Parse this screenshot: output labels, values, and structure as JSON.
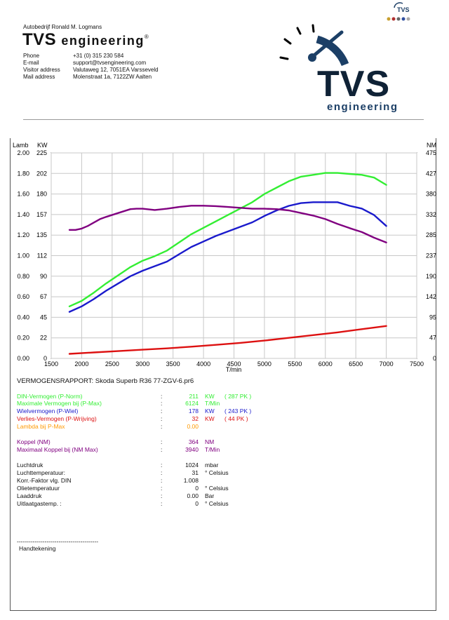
{
  "header": {
    "company": "Autobedrijf Ronald M. Logmans",
    "brand_main": "TVS",
    "brand_sub": "engineering",
    "brand_mark": "®",
    "contacts": [
      {
        "label": "Phone",
        "value": "+31 (0) 315 230 584"
      },
      {
        "label": "E-mail",
        "value": "support@tvsengineering.com"
      },
      {
        "label": "Visitor address",
        "value": "Valutaweg 12,  7051EA  Varsseveld"
      },
      {
        "label": "Mail address",
        "value": "Molenstraat 1a,  7122ZW  Aalten"
      }
    ],
    "logo_big": "TVS",
    "logo_small": "engineering",
    "corner_logo": "TVS",
    "colors": {
      "logo_blue": "#1c3f66",
      "logo_dark": "#0f2236"
    }
  },
  "chart_data": {
    "type": "line",
    "xlabel": "T/min",
    "x_ticks": [
      1500,
      2000,
      2500,
      3000,
      3500,
      4000,
      4500,
      5000,
      5500,
      6000,
      6500,
      7000,
      7500
    ],
    "xlim": [
      1500,
      7500
    ],
    "left_axes": [
      {
        "label": "Lamb",
        "ticks": [
          "2.00",
          "1.80",
          "1.60",
          "1.40",
          "1.20",
          "1.00",
          "0.80",
          "0.60",
          "0.40",
          "0.20",
          "0.00"
        ]
      },
      {
        "label": "KW",
        "ticks": [
          "225",
          "202",
          "180",
          "157",
          "135",
          "112",
          "90",
          "67",
          "45",
          "22",
          "0"
        ],
        "ylim": [
          0,
          225
        ]
      }
    ],
    "right_axis": {
      "label": "NM",
      "ticks": [
        "475",
        "427",
        "380",
        "332",
        "285",
        "237",
        "190",
        "142",
        "95",
        "47",
        "0"
      ],
      "ylim": [
        0,
        475
      ]
    },
    "series": [
      {
        "name": "DIN-Vermogen (P-Norm)",
        "axis": "kw",
        "color": "#33ee33",
        "x": [
          1800,
          2000,
          2200,
          2400,
          2600,
          2800,
          3000,
          3200,
          3400,
          3600,
          3800,
          4000,
          4200,
          4400,
          4600,
          4800,
          5000,
          5200,
          5400,
          5600,
          5800,
          6000,
          6200,
          6400,
          6600,
          6800,
          7000
        ],
        "y": [
          57,
          63,
          72,
          82,
          91,
          100,
          107,
          112,
          118,
          127,
          136,
          143,
          150,
          157,
          164,
          171,
          180,
          187,
          194,
          199,
          201,
          203,
          203,
          202,
          201,
          198,
          190
        ]
      },
      {
        "name": "Wielvermogen (P-Wiel)",
        "axis": "kw",
        "color": "#1a1acc",
        "x": [
          1800,
          2000,
          2200,
          2400,
          2600,
          2800,
          3000,
          3200,
          3400,
          3600,
          3800,
          4000,
          4200,
          4400,
          4600,
          4800,
          5000,
          5200,
          5400,
          5600,
          5800,
          6000,
          6200,
          6400,
          6600,
          6800,
          7000
        ],
        "y": [
          51,
          57,
          65,
          74,
          82,
          90,
          96,
          101,
          106,
          114,
          122,
          128,
          134,
          139,
          144,
          149,
          156,
          162,
          167,
          170,
          171,
          171,
          171,
          167,
          164,
          157,
          145
        ]
      },
      {
        "name": "Verlies-Vermogen (P-Wrijving)",
        "axis": "kw",
        "color": "#dd1111",
        "x": [
          1800,
          2200,
          2600,
          3000,
          3400,
          3800,
          4200,
          4600,
          5000,
          5400,
          5800,
          6200,
          6600,
          7000
        ],
        "y": [
          5,
          6.5,
          8,
          9.5,
          11,
          12.8,
          14.8,
          17,
          19.5,
          22.5,
          25.5,
          28.5,
          32,
          35.5
        ]
      },
      {
        "name": "Koppel (NM)",
        "axis": "nm",
        "color": "#800080",
        "x": [
          1800,
          1900,
          2000,
          2100,
          2200,
          2300,
          2400,
          2600,
          2800,
          2900,
          3000,
          3200,
          3400,
          3600,
          3800,
          4000,
          4200,
          4400,
          4600,
          4800,
          5000,
          5200,
          5400,
          5600,
          5800,
          6000,
          6200,
          6400,
          6600,
          6800,
          7000
        ],
        "y": [
          297,
          297,
          300,
          306,
          314,
          322,
          327,
          336,
          345,
          346,
          346,
          343,
          346,
          350,
          353,
          353,
          352,
          350,
          348,
          346,
          346,
          345,
          342,
          336,
          330,
          322,
          311,
          301,
          292,
          279,
          268
        ]
      }
    ]
  },
  "report": {
    "title": "VERMOGENSRAPPORT: Skoda Superb R36 77-ZGV-6.pr6",
    "rows": [
      {
        "label": "DIN-Vermogen (P-Norm)",
        "value": "211",
        "unit": "KW",
        "pk": "( 287 PK )",
        "color": "#33ee33"
      },
      {
        "label": "Maximale Vermogen bij (P-Max)",
        "value": "6124",
        "unit": "T/Min",
        "pk": "",
        "color": "#33ee33"
      },
      {
        "label": "Wielvermogen (P-Wiel)",
        "value": "178",
        "unit": "KW",
        "pk": "( 243 PK )",
        "color": "#1a1acc"
      },
      {
        "label": "Verlies-Vermogen (P-Wrijving)",
        "value": "32",
        "unit": "KW",
        "pk": "( 44 PK )",
        "color": "#dd1111"
      },
      {
        "label": "Lambda bij P-Max",
        "value": "0.00",
        "unit": "",
        "pk": "",
        "color": "#ff9900"
      },
      {
        "label": "Koppel (NM)",
        "value": "364",
        "unit": "NM",
        "pk": "",
        "color": "#800080"
      },
      {
        "label": "Maximaal Koppel bij (NM Max)",
        "value": "3940",
        "unit": "T/Min",
        "pk": "",
        "color": "#800080"
      },
      {
        "label": "Luchtdruk",
        "value": "1024",
        "unit": "mbar",
        "pk": "",
        "color": "#111111"
      },
      {
        "label": "Luchttemperatuur:",
        "value": "31",
        "unit": "° Celsius",
        "pk": "",
        "color": "#111111"
      },
      {
        "label": "Korr.-Faktor vlg. DIN",
        "value": "1.008",
        "unit": "",
        "pk": "",
        "color": "#111111"
      },
      {
        "label": "Olietemperatuur",
        "value": "0",
        "unit": "° Celsius",
        "pk": "",
        "color": "#111111"
      },
      {
        "label": "Laaddruk",
        "value": "0.00",
        "unit": "Bar",
        "pk": "",
        "color": "#111111"
      },
      {
        "label": "Uitlaatgastemp. :",
        "value": "0",
        "unit": "° Celsius",
        "pk": "",
        "color": "#111111"
      }
    ],
    "separator": ":",
    "signature_line": "-----------------------------------------",
    "signature_label": "Handtekening"
  }
}
